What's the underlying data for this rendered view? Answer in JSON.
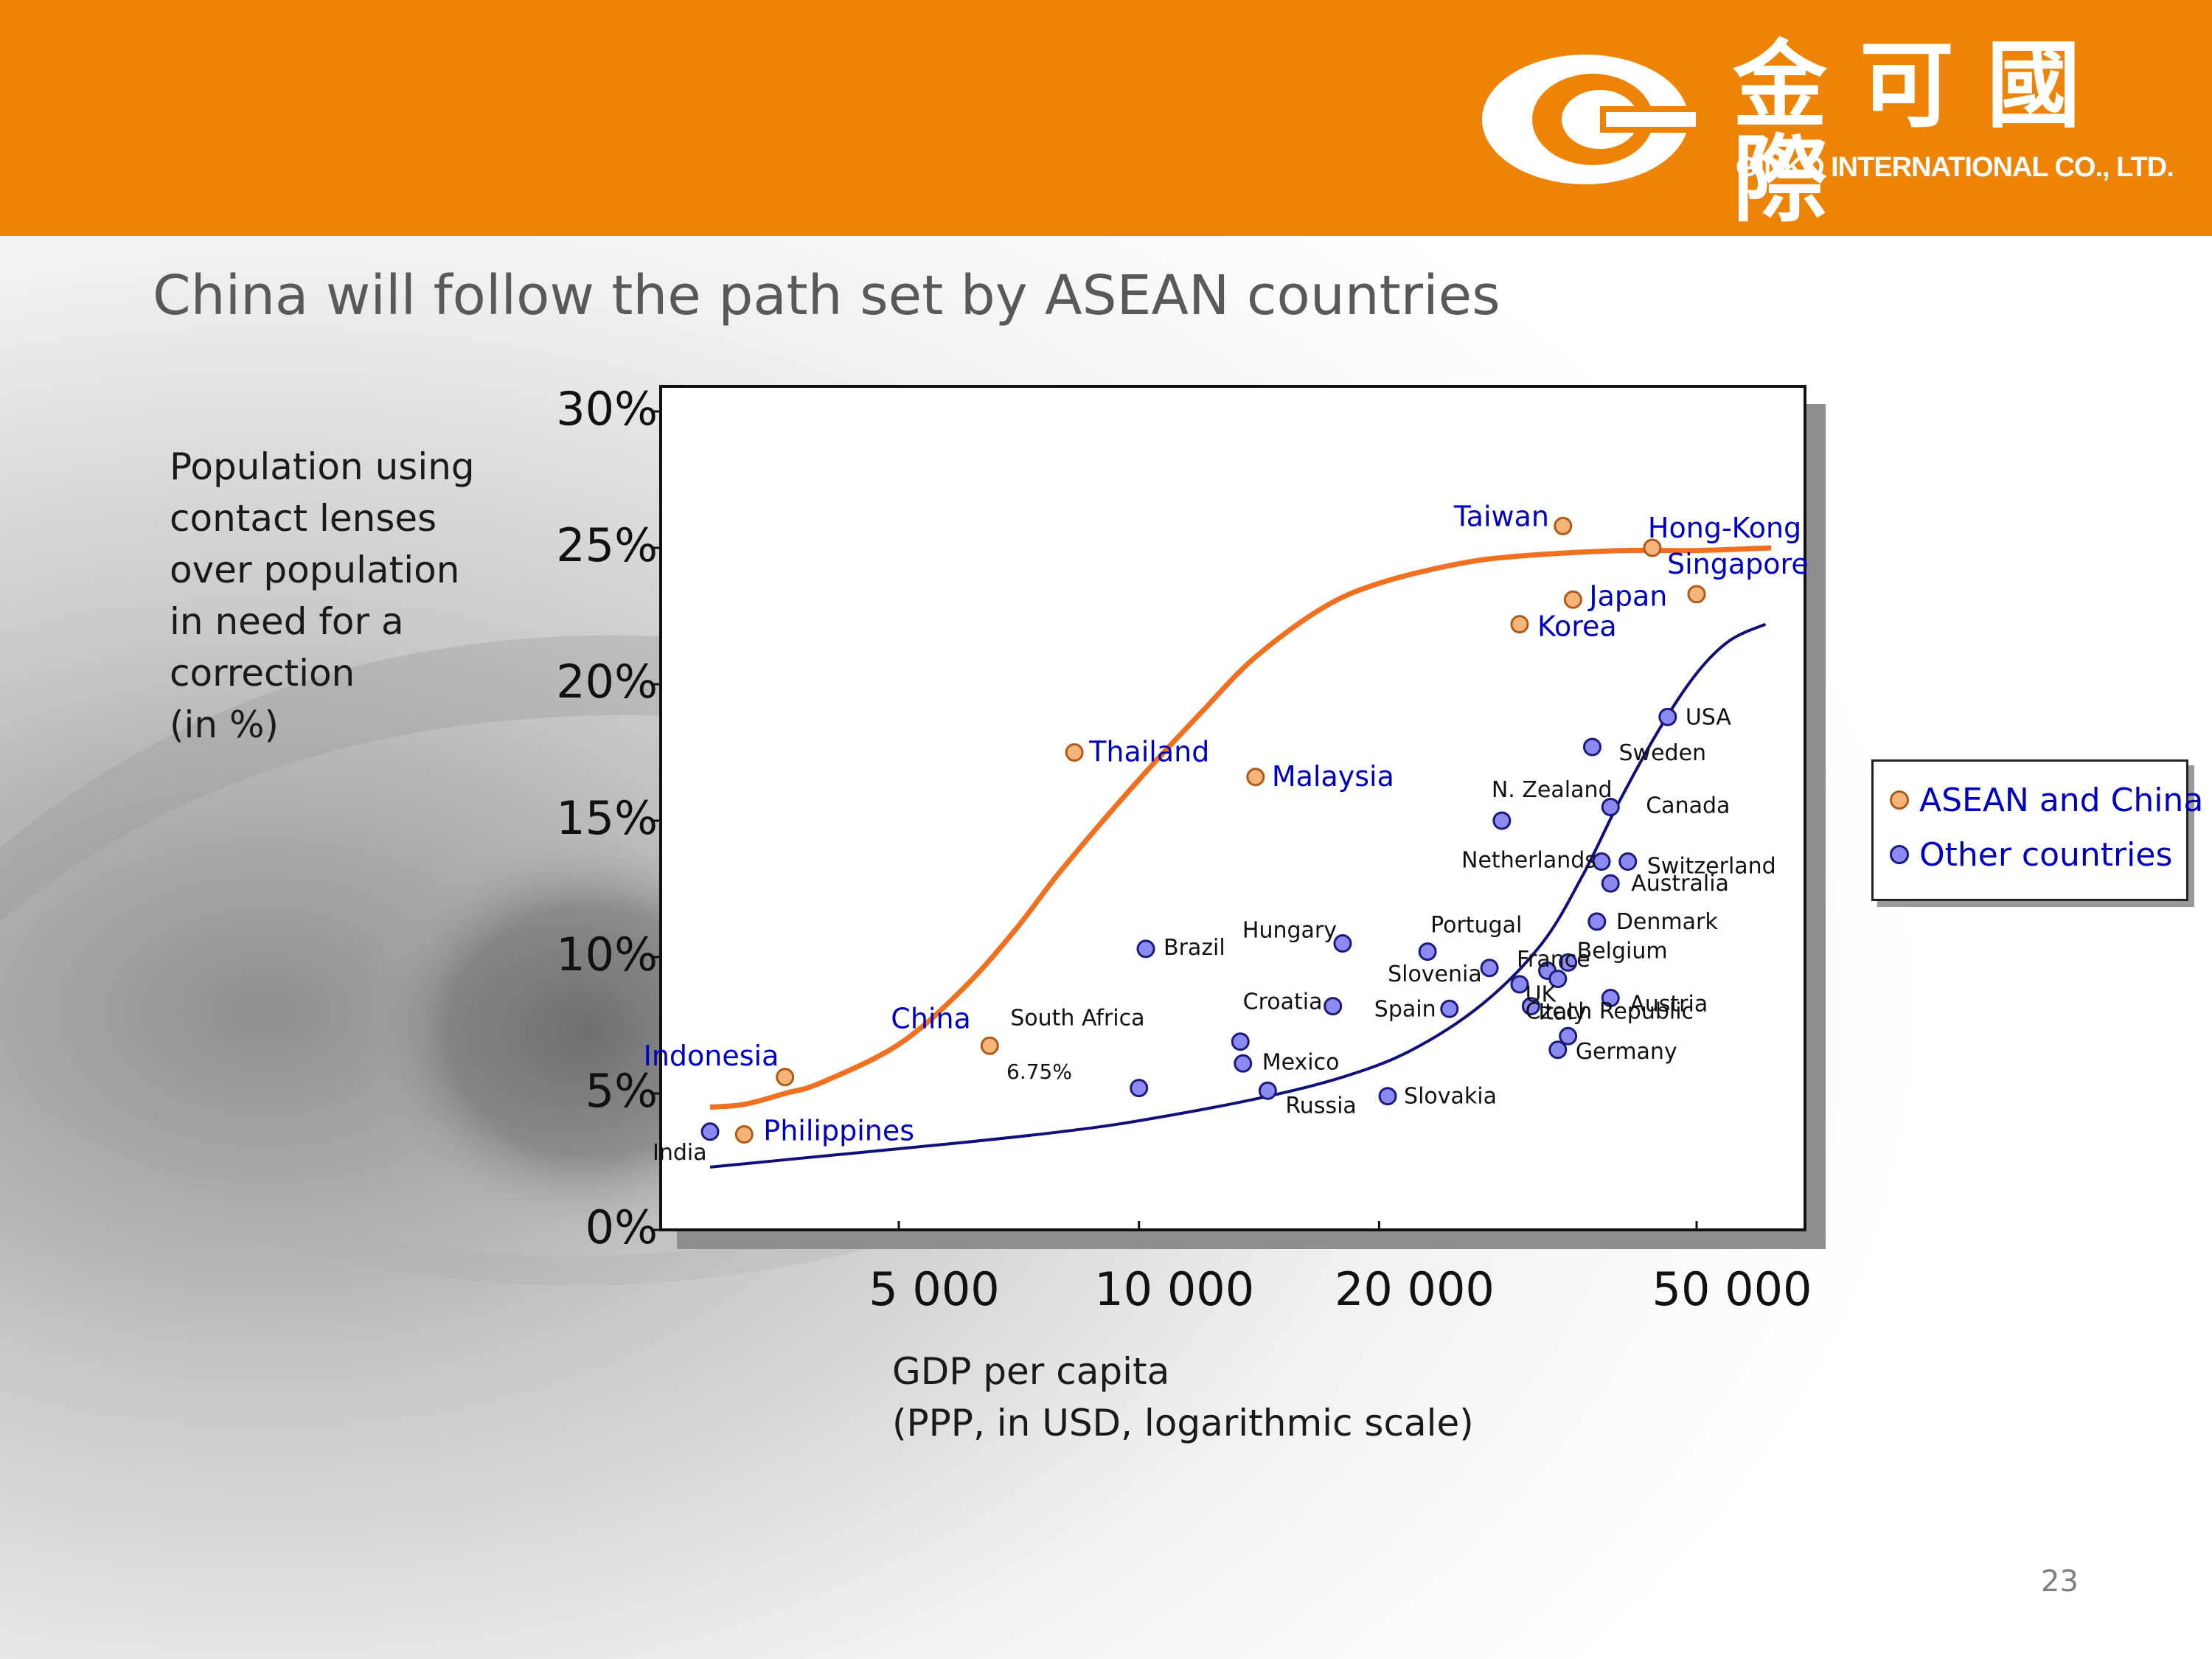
{
  "header": {
    "brand_cn": "金可國際",
    "brand_en": "GINKO INTERNATIONAL CO., LTD.",
    "logo_icon": "ginko-logo-icon",
    "color": "#EE8407"
  },
  "slide": {
    "title": "China will follow the path set by ASEAN countries",
    "page_number": "23"
  },
  "chart_data": {
    "type": "scatter",
    "ylabel_lines": [
      "Population using",
      "contact lenses",
      "over population",
      "in need for a",
      "correction",
      "(in %)"
    ],
    "xlabel_lines": [
      "GDP per capita",
      "(PPP, in USD, logarithmic scale)"
    ],
    "x_scale": "log",
    "ylim": [
      0,
      30
    ],
    "y_ticks": [
      0,
      5,
      10,
      15,
      20,
      25,
      30
    ],
    "y_tick_labels": [
      "0%",
      "5%",
      "10%",
      "15%",
      "20%",
      "25%",
      "30%"
    ],
    "x_ticks": [
      5000,
      10000,
      20000,
      50000
    ],
    "x_tick_labels": [
      "5 000",
      "10 000",
      "20 000",
      "50 000"
    ],
    "grid": false,
    "legend": "right",
    "series": [
      {
        "name": "ASEAN and China",
        "color": "#F5B47A",
        "stroke": "#B05A1A",
        "label_color": "#0000C0",
        "points": [
          {
            "label": "Indonesia",
            "x": 3600,
            "y": 5.6
          },
          {
            "label": "Philippines",
            "x": 3200,
            "y": 3.5
          },
          {
            "label": "China",
            "x": 6500,
            "y": 6.75
          },
          {
            "label": "Thailand",
            "x": 8300,
            "y": 17.5
          },
          {
            "label": "Malaysia",
            "x": 14000,
            "y": 16.6
          },
          {
            "label": "Taiwan",
            "x": 34000,
            "y": 25.8
          },
          {
            "label": "Hong-Kong",
            "x": 44000,
            "y": 25.0
          },
          {
            "label": "Japan",
            "x": 35000,
            "y": 23.1
          },
          {
            "label": "Korea",
            "x": 30000,
            "y": 22.2
          },
          {
            "label": "Singapore",
            "x": 50000,
            "y": 23.3
          }
        ]
      },
      {
        "name": "Other countries",
        "color": "#8A8AF0",
        "stroke": "#1A1A7A",
        "label_color": "#111111",
        "points": [
          {
            "label": "India",
            "x": 2900,
            "y": 3.6
          },
          {
            "label": "",
            "x": 10000,
            "y": 5.2
          },
          {
            "label": "Brazil",
            "x": 10200,
            "y": 10.3
          },
          {
            "label": "South Africa",
            "x": 13400,
            "y": 6.9
          },
          {
            "label": "Russia",
            "x": 14500,
            "y": 5.1
          },
          {
            "label": "Mexico",
            "x": 13500,
            "y": 6.1
          },
          {
            "label": "Croatia",
            "x": 17500,
            "y": 8.2
          },
          {
            "label": "Hungary",
            "x": 18000,
            "y": 10.5
          },
          {
            "label": "Slovakia",
            "x": 20500,
            "y": 4.9
          },
          {
            "label": "Portugal",
            "x": 23000,
            "y": 10.2
          },
          {
            "label": "Spain",
            "x": 24500,
            "y": 8.1
          },
          {
            "label": "Slovenia",
            "x": 27500,
            "y": 9.6
          },
          {
            "label": "N. Zealand",
            "x": 28500,
            "y": 15.0
          },
          {
            "label": "France",
            "x": 30000,
            "y": 9.0
          },
          {
            "label": "Italy",
            "x": 31000,
            "y": 8.2
          },
          {
            "label": "UK",
            "x": 32500,
            "y": 9.5
          },
          {
            "label": "",
            "x": 33500,
            "y": 9.2
          },
          {
            "label": "Belgium",
            "x": 34500,
            "y": 9.8
          },
          {
            "label": "Germany",
            "x": 33500,
            "y": 6.6
          },
          {
            "label": "Czech Republic",
            "x": 34500,
            "y": 7.1
          },
          {
            "label": "Netherlands",
            "x": 38000,
            "y": 13.5
          },
          {
            "label": "Sweden",
            "x": 37000,
            "y": 17.7
          },
          {
            "label": "Canada",
            "x": 39000,
            "y": 15.5
          },
          {
            "label": "Switzerland",
            "x": 41000,
            "y": 13.5
          },
          {
            "label": "Australia",
            "x": 39000,
            "y": 12.7
          },
          {
            "label": "Denmark",
            "x": 37500,
            "y": 11.3
          },
          {
            "label": "Austria",
            "x": 39000,
            "y": 8.5
          },
          {
            "label": "USA",
            "x": 46000,
            "y": 18.8
          }
        ]
      }
    ],
    "trend_lines": [
      {
        "series": "ASEAN and China",
        "color": "#F07020",
        "points": [
          [
            2900,
            4.5
          ],
          [
            3200,
            4.6
          ],
          [
            3600,
            5.0
          ],
          [
            4000,
            5.4
          ],
          [
            5000,
            6.8
          ],
          [
            6000,
            8.8
          ],
          [
            7000,
            11.0
          ],
          [
            8000,
            13.2
          ],
          [
            10000,
            16.5
          ],
          [
            12000,
            19.0
          ],
          [
            14000,
            21.0
          ],
          [
            17000,
            22.8
          ],
          [
            20000,
            23.7
          ],
          [
            25000,
            24.4
          ],
          [
            30000,
            24.7
          ],
          [
            40000,
            24.9
          ],
          [
            50000,
            24.9
          ],
          [
            62000,
            25.0
          ]
        ]
      },
      {
        "series": "Other countries",
        "color": "#10107A",
        "points": [
          [
            2900,
            2.3
          ],
          [
            4000,
            2.7
          ],
          [
            6000,
            3.2
          ],
          [
            8000,
            3.6
          ],
          [
            10000,
            4.0
          ],
          [
            14000,
            4.8
          ],
          [
            18000,
            5.6
          ],
          [
            22000,
            6.6
          ],
          [
            27000,
            8.3
          ],
          [
            32000,
            10.5
          ],
          [
            36000,
            13.0
          ],
          [
            40000,
            15.7
          ],
          [
            45000,
            18.4
          ],
          [
            50000,
            20.4
          ],
          [
            55000,
            21.6
          ],
          [
            61000,
            22.2
          ]
        ]
      }
    ]
  }
}
